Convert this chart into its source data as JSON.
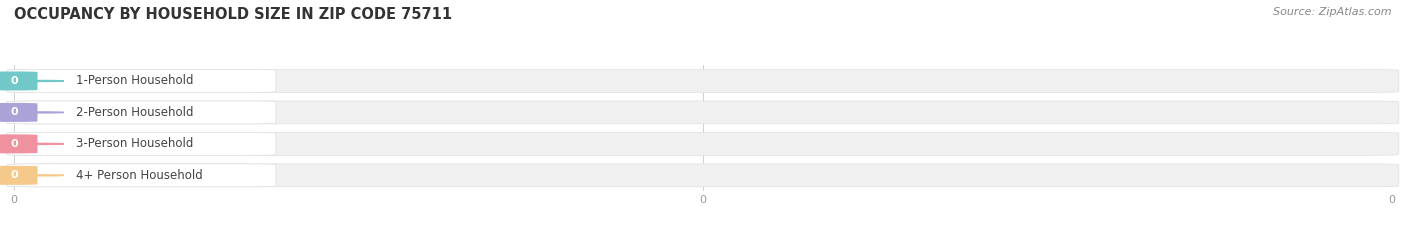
{
  "title": "OCCUPANCY BY HOUSEHOLD SIZE IN ZIP CODE 75711",
  "source": "Source: ZipAtlas.com",
  "categories": [
    "1-Person Household",
    "2-Person Household",
    "3-Person Household",
    "4+ Person Household"
  ],
  "values": [
    0,
    0,
    0,
    0
  ],
  "bar_colors": [
    "#72c8c8",
    "#aba3d8",
    "#f0919f",
    "#f5c98a"
  ],
  "bar_bg_color": "#f0f0f0",
  "background_color": "#ffffff",
  "title_color": "#333333",
  "title_fontsize": 10.5,
  "label_fontsize": 8.5,
  "value_fontsize": 8,
  "source_fontsize": 8,
  "tick_label_color": "#999999"
}
